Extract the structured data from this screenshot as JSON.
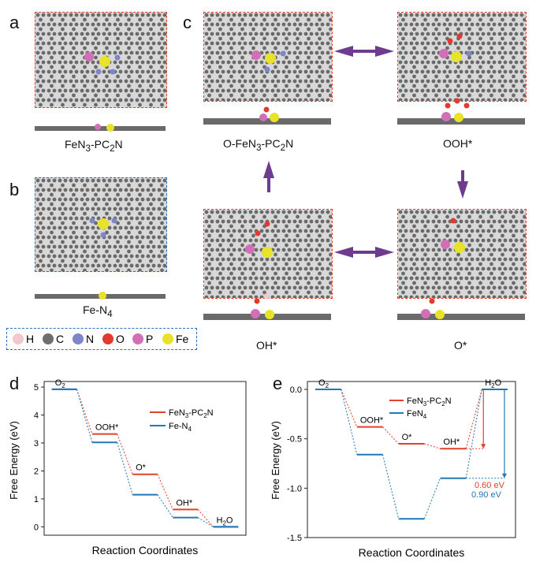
{
  "panels": {
    "a": {
      "letter": "a",
      "caption_main": "FeN",
      "caption_sub1": "3",
      "caption_mid": "-PC",
      "caption_sub2": "2",
      "caption_end": "N"
    },
    "b": {
      "letter": "b",
      "caption_main": "Fe-N",
      "caption_sub1": "4"
    },
    "c": {
      "letter": "c",
      "states": [
        {
          "main": "O-FeN",
          "sub1": "3",
          "mid": "-PC",
          "sub2": "2",
          "end": "N"
        },
        {
          "main": "OOH*"
        },
        {
          "main": "O*"
        },
        {
          "main": "OH*"
        }
      ]
    },
    "d": {
      "letter": "d"
    },
    "e": {
      "letter": "e"
    }
  },
  "legend_atoms": [
    {
      "symbol": "H",
      "color": "#f4c6cf"
    },
    {
      "symbol": "C",
      "color": "#6e6e6e"
    },
    {
      "symbol": "N",
      "color": "#7c86c9"
    },
    {
      "symbol": "O",
      "color": "#e23a2f"
    },
    {
      "symbol": "P",
      "color": "#d36fb6"
    },
    {
      "symbol": "Fe",
      "color": "#e8e22a"
    }
  ],
  "colors": {
    "red": "#e2412b",
    "blue": "#2277b5",
    "frame_red": "#d9412b",
    "frame_blue": "#2c6fb7"
  },
  "chart_data": [
    {
      "type": "line",
      "panel": "d",
      "ylabel": "Free Energy (eV)",
      "xlabel": "Reaction Coordinates",
      "ylim": [
        -0.3,
        5.2
      ],
      "yticks": [
        "0",
        "1",
        "2",
        "3",
        "4",
        "5"
      ],
      "categories": [
        "O2",
        "OOH*",
        "O*",
        "OH*",
        "H2O"
      ],
      "step_labels": [
        {
          "main": "O",
          "sub": "2"
        },
        {
          "main": "OOH*",
          "sub": ""
        },
        {
          "main": "O*",
          "sub": ""
        },
        {
          "main": "OH*",
          "sub": ""
        },
        {
          "main": "H",
          "sub": "2",
          "end": "O"
        }
      ],
      "legend": [
        {
          "main": "FeN",
          "sub1": "3",
          "mid": "-PC",
          "sub2": "2",
          "end": "N"
        },
        {
          "main": "Fe-N",
          "sub1": "4",
          "mid": "",
          "sub2": "",
          "end": ""
        }
      ],
      "series": [
        {
          "name": "FeN3-PC2N",
          "values": [
            4.92,
            3.32,
            1.88,
            0.62,
            0.0
          ]
        },
        {
          "name": "Fe-N4",
          "values": [
            4.92,
            3.02,
            1.15,
            0.33,
            0.0
          ]
        }
      ]
    },
    {
      "type": "line",
      "panel": "e",
      "ylabel": "Free Energy (eV)",
      "xlabel": "Reaction Coordinates",
      "ylim": [
        -1.5,
        0.08
      ],
      "yticks": [
        "0.0",
        "-0.5",
        "-1.0",
        "-1.5"
      ],
      "categories": [
        "O2",
        "OOH*",
        "O*",
        "OH*",
        "H2O"
      ],
      "step_labels": [
        {
          "main": "O",
          "sub": "2"
        },
        {
          "main": "OOH*",
          "sub": ""
        },
        {
          "main": "O*",
          "sub": ""
        },
        {
          "main": "OH*",
          "sub": ""
        },
        {
          "main": "H",
          "sub": "2",
          "end": "O"
        }
      ],
      "legend": [
        {
          "main": "FeN",
          "sub1": "3",
          "mid": "-PC",
          "sub2": "2",
          "end": "N"
        },
        {
          "main": "FeN",
          "sub1": "4",
          "mid": "",
          "sub2": "",
          "end": ""
        }
      ],
      "series": [
        {
          "name": "FeN3-PC2N",
          "values": [
            0.0,
            -0.38,
            -0.55,
            -0.6,
            0.0
          ]
        },
        {
          "name": "FeN4",
          "values": [
            0.0,
            -0.66,
            -1.31,
            -0.9,
            0.0
          ]
        }
      ],
      "annotations": [
        "0.60 eV",
        "0.90 eV"
      ]
    }
  ]
}
